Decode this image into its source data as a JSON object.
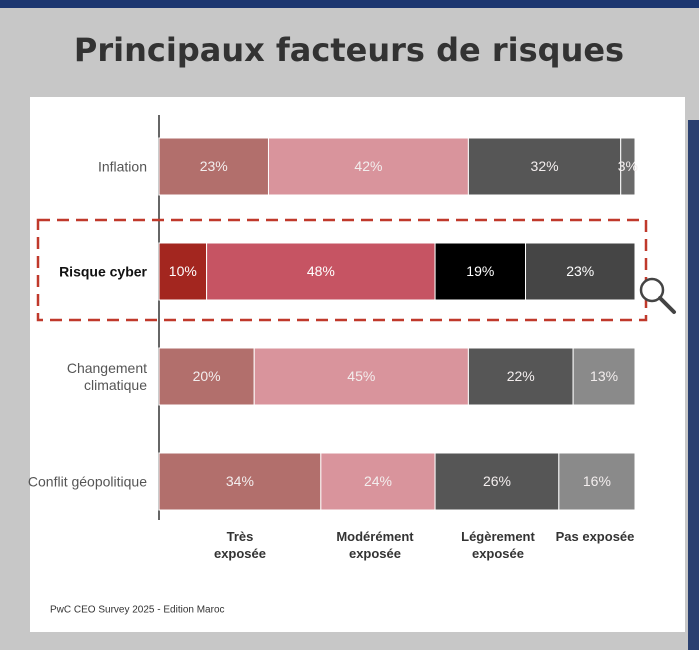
{
  "chart_data": {
    "type": "stacked-bar-horizontal",
    "title": "Principaux facteurs de risques",
    "categories": [
      "Inflation",
      "Risque cyber",
      "Changement climatique",
      "Conflit géopolitique"
    ],
    "highlight_category": 1,
    "xlim": [
      0,
      100
    ],
    "series": [
      {
        "name": "Très exposée",
        "colors": [
          "#b26f6c",
          "#a3261f",
          "#b26f6c",
          "#b26f6c"
        ],
        "values": [
          23,
          10,
          20,
          34
        ],
        "value_labels": [
          "23%",
          "10%",
          "20%",
          "34%"
        ]
      },
      {
        "name": "Modérément exposée",
        "colors": [
          "#d9949c",
          "#c65463",
          "#d9949c",
          "#d9949c"
        ],
        "values": [
          42,
          48,
          45,
          24
        ],
        "value_labels": [
          "42%",
          "48%",
          "45%",
          "24%"
        ]
      },
      {
        "name": "Légèrement exposée",
        "colors": [
          "#565656",
          "#000000",
          "#565656",
          "#565656"
        ],
        "values": [
          32,
          19,
          22,
          26
        ],
        "value_labels": [
          "32%",
          "19%",
          "22%",
          "26%"
        ]
      },
      {
        "name": "Pas exposée",
        "colors": [
          "#6a6a6a",
          "#454545",
          "#8a8a8a",
          "#8a8a8a"
        ],
        "values": [
          3,
          23,
          13,
          16
        ],
        "value_labels": [
          "3%",
          "23%",
          "13%",
          "16%"
        ]
      }
    ],
    "source": "PwC CEO Survey 2025 - Edition Maroc"
  }
}
